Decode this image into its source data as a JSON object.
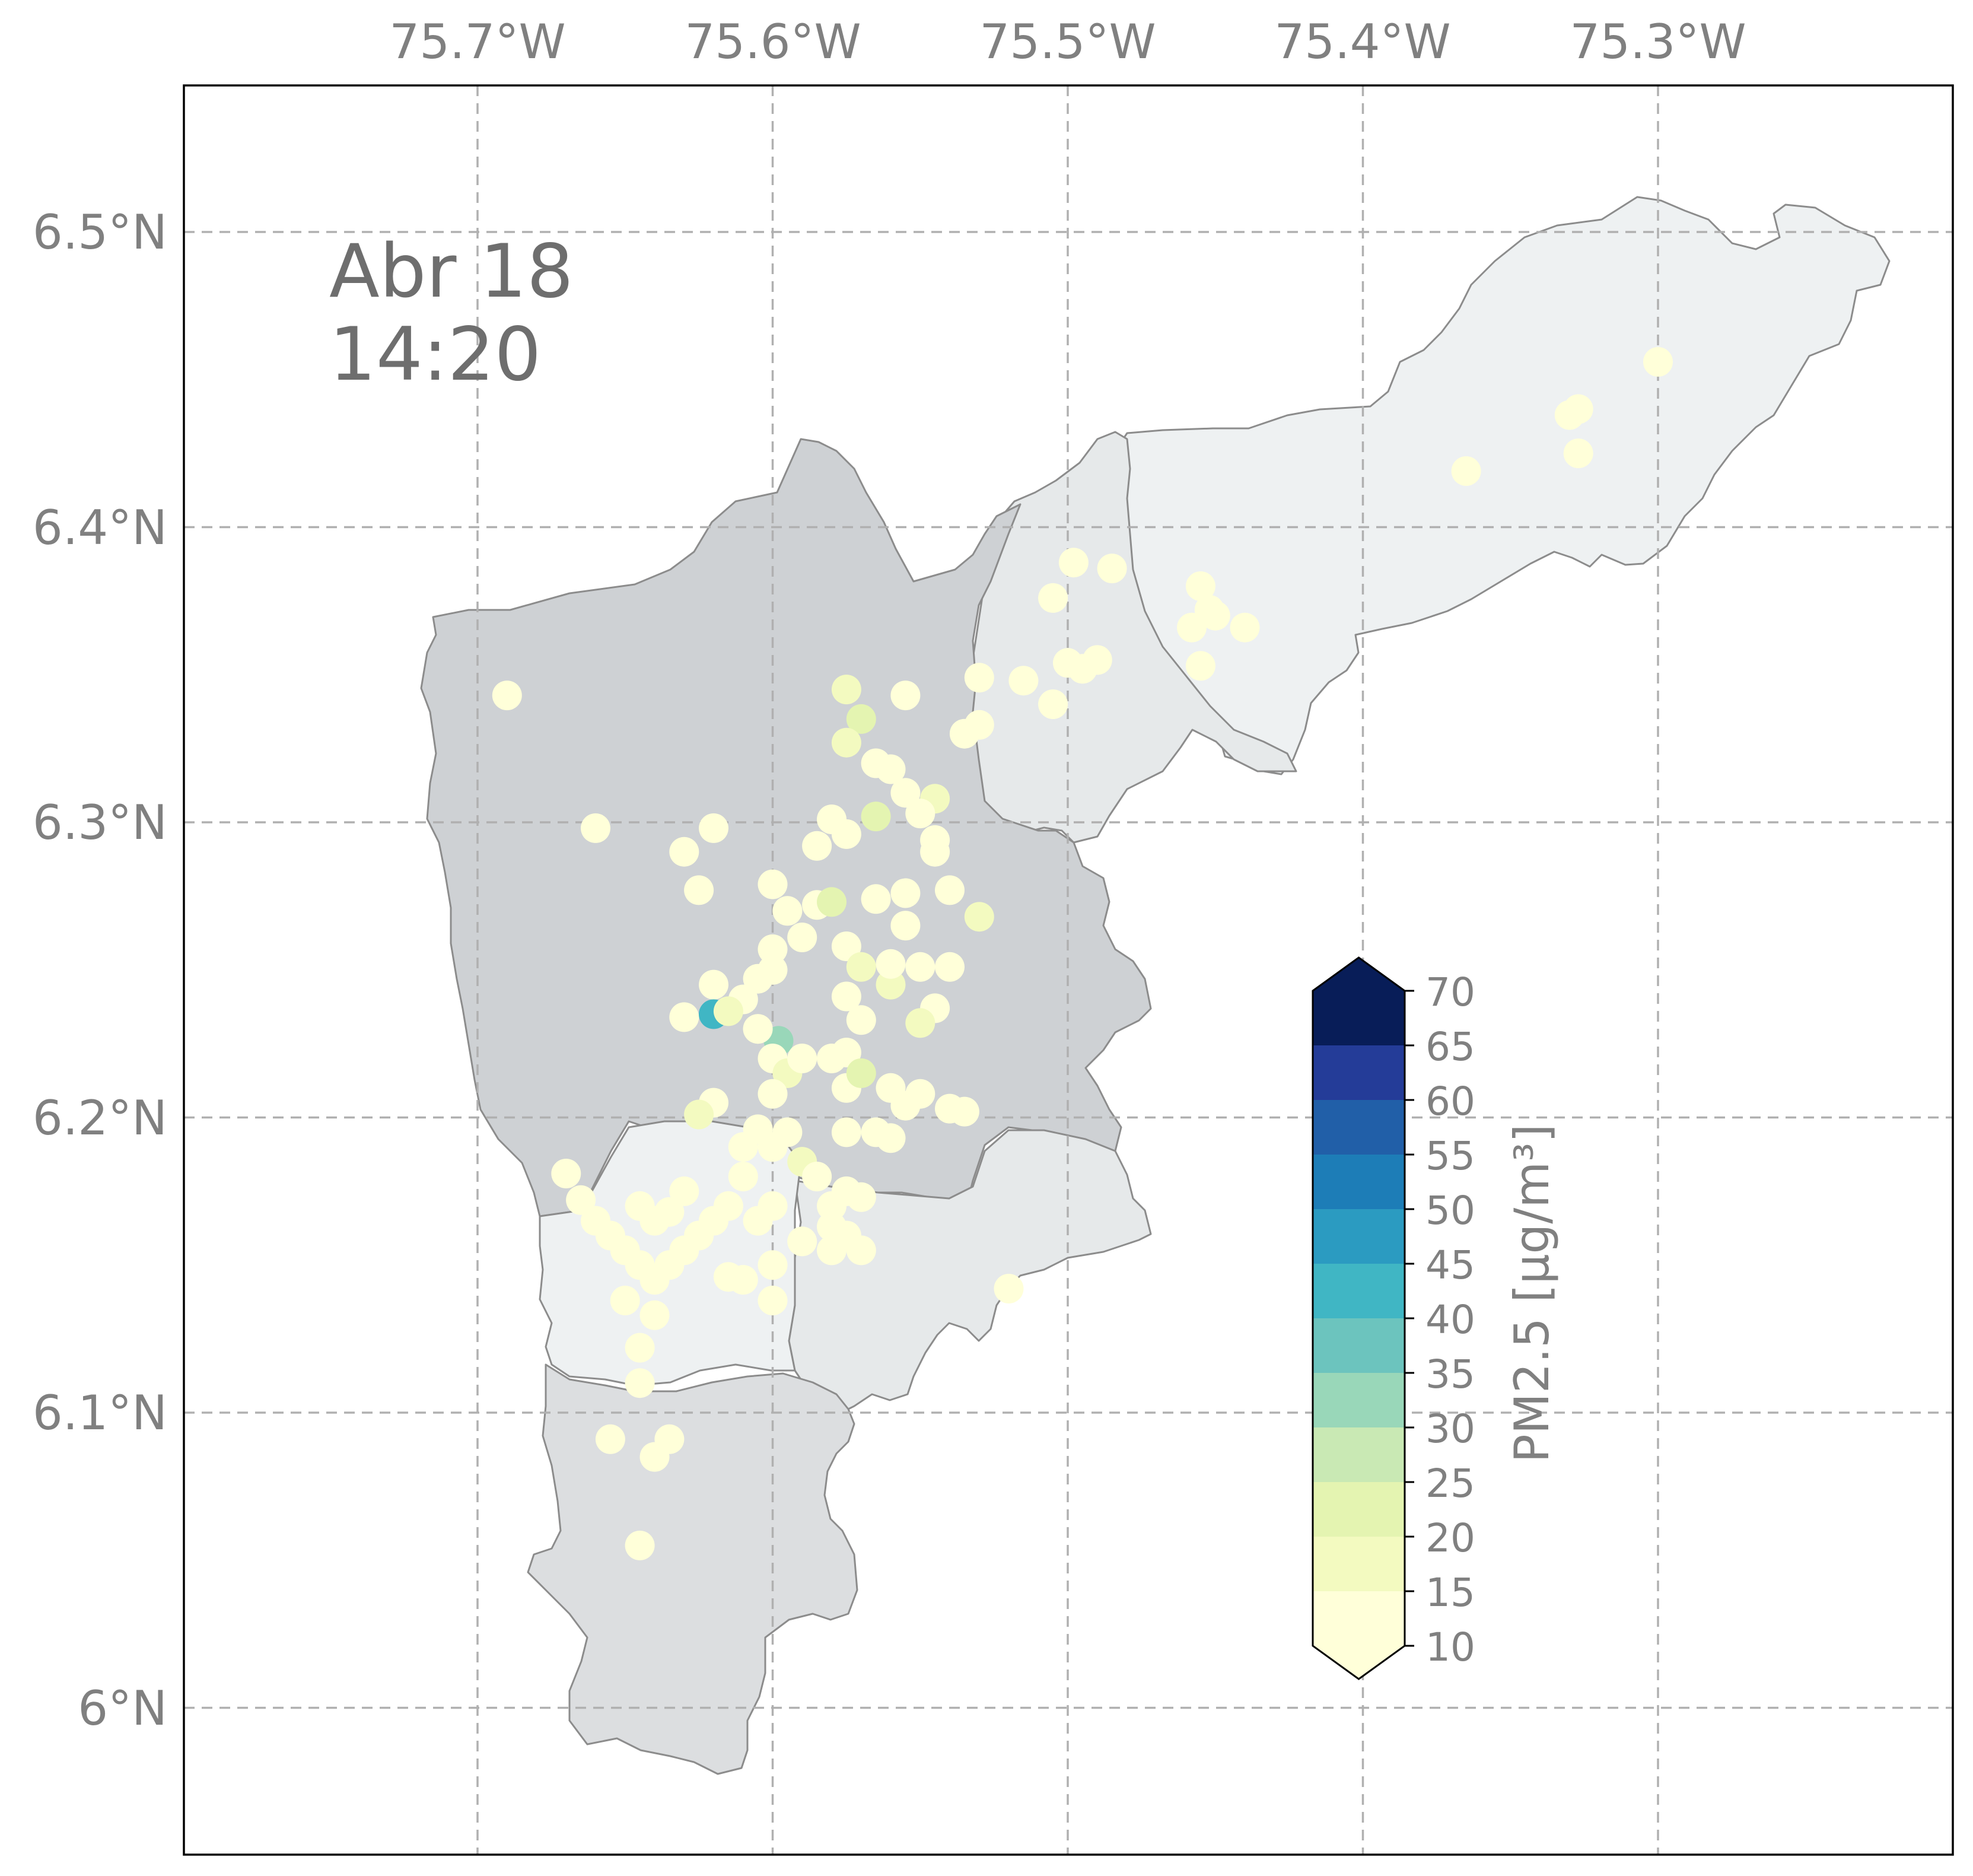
{
  "map": {
    "timestamp": {
      "date": "Abr 18",
      "time": "14:20"
    },
    "lon_ticks": [
      "75.7°W",
      "75.6°W",
      "75.5°W",
      "75.4°W",
      "75.3°W"
    ],
    "lat_ticks": [
      "6.5°N",
      "6.4°N",
      "6.3°N",
      "6.2°N",
      "6.1°N",
      "6°N"
    ],
    "colorbar": {
      "label": "PM2.5 [μg/m³]",
      "ticks": [
        "10",
        "15",
        "20",
        "25",
        "30",
        "35",
        "40",
        "45",
        "50",
        "55",
        "60",
        "65",
        "70"
      ],
      "levels": [
        10,
        15,
        20,
        25,
        30,
        35,
        40,
        45,
        50,
        55,
        60,
        65,
        70
      ],
      "colors": [
        "#ffffd9",
        "#f3fac0",
        "#e4f4b1",
        "#c9e9b4",
        "#99d7b9",
        "#6cc4be",
        "#40b6c4",
        "#2b9bc1",
        "#1d7db7",
        "#215fa8",
        "#243c98",
        "#081d58"
      ],
      "extend": "both"
    },
    "region_fills": {
      "valle_central": "#ced1d4",
      "sur": "#dcdee0",
      "norte": "#e6e9ea",
      "oriente": "#eef1f2"
    },
    "stations": [
      [
        -75.69,
        6.343,
        12
      ],
      [
        -75.66,
        6.298,
        12
      ],
      [
        -75.63,
        6.29,
        12
      ],
      [
        -75.62,
        6.298,
        12
      ],
      [
        -75.625,
        6.277,
        12
      ],
      [
        -75.6,
        6.279,
        12
      ],
      [
        -75.595,
        6.27,
        12
      ],
      [
        -75.585,
        6.272,
        13
      ],
      [
        -75.58,
        6.273,
        22
      ],
      [
        -75.59,
        6.261,
        12
      ],
      [
        -75.575,
        6.258,
        13
      ],
      [
        -75.57,
        6.251,
        18
      ],
      [
        -75.56,
        6.245,
        16
      ],
      [
        -75.56,
        6.252,
        14
      ],
      [
        -75.55,
        6.251,
        12
      ],
      [
        -75.54,
        6.251,
        12
      ],
      [
        -75.565,
        6.274,
        12
      ],
      [
        -75.555,
        6.265,
        14
      ],
      [
        -75.555,
        6.276,
        12
      ],
      [
        -75.54,
        6.277,
        12
      ],
      [
        -75.53,
        6.268,
        16
      ],
      [
        -75.545,
        6.237,
        12
      ],
      [
        -75.55,
        6.232,
        18
      ],
      [
        -75.575,
        6.241,
        12
      ],
      [
        -75.57,
        6.233,
        12
      ],
      [
        -75.62,
        6.245,
        12
      ],
      [
        -75.61,
        6.24,
        12
      ],
      [
        -75.605,
        6.247,
        12
      ],
      [
        -75.6,
        6.257,
        14
      ],
      [
        -75.6,
        6.25,
        12
      ],
      [
        -75.63,
        6.234,
        12
      ],
      [
        -75.62,
        6.235,
        44
      ],
      [
        -75.615,
        6.236,
        18
      ],
      [
        -75.605,
        6.23,
        16
      ],
      [
        -75.598,
        6.226,
        34
      ],
      [
        -75.6,
        6.22,
        12
      ],
      [
        -75.595,
        6.215,
        18
      ],
      [
        -75.59,
        6.22,
        12
      ],
      [
        -75.58,
        6.22,
        12
      ],
      [
        -75.575,
        6.222,
        12
      ],
      [
        -75.575,
        6.21,
        13
      ],
      [
        -75.57,
        6.215,
        22
      ],
      [
        -75.56,
        6.21,
        12
      ],
      [
        -75.555,
        6.204,
        12
      ],
      [
        -75.55,
        6.208,
        12
      ],
      [
        -75.54,
        6.203,
        12
      ],
      [
        -75.535,
        6.202,
        12
      ],
      [
        -75.6,
        6.208,
        12
      ],
      [
        -75.605,
        6.23,
        12
      ],
      [
        -75.62,
        6.205,
        12
      ],
      [
        -75.625,
        6.201,
        18
      ],
      [
        -75.61,
        6.19,
        12
      ],
      [
        -75.605,
        6.196,
        12
      ],
      [
        -75.6,
        6.19,
        12
      ],
      [
        -75.595,
        6.195,
        12
      ],
      [
        -75.59,
        6.185,
        18
      ],
      [
        -75.585,
        6.18,
        12
      ],
      [
        -75.58,
        6.17,
        12
      ],
      [
        -75.575,
        6.175,
        12
      ],
      [
        -75.57,
        6.173,
        12
      ],
      [
        -75.565,
        6.195,
        12
      ],
      [
        -75.56,
        6.193,
        12
      ],
      [
        -75.575,
        6.195,
        12
      ],
      [
        -75.58,
        6.163,
        12
      ],
      [
        -75.575,
        6.16,
        12
      ],
      [
        -75.57,
        6.155,
        12
      ],
      [
        -75.58,
        6.155,
        12
      ],
      [
        -75.59,
        6.158,
        12
      ],
      [
        -75.6,
        6.17,
        12
      ],
      [
        -75.605,
        6.165,
        12
      ],
      [
        -75.61,
        6.18,
        12
      ],
      [
        -75.615,
        6.17,
        12
      ],
      [
        -75.62,
        6.165,
        12
      ],
      [
        -75.625,
        6.16,
        12
      ],
      [
        -75.63,
        6.155,
        12
      ],
      [
        -75.635,
        6.15,
        12
      ],
      [
        -75.64,
        6.145,
        12
      ],
      [
        -75.645,
        6.15,
        12
      ],
      [
        -75.65,
        6.155,
        12
      ],
      [
        -75.655,
        6.16,
        12
      ],
      [
        -75.66,
        6.165,
        12
      ],
      [
        -75.665,
        6.172,
        12
      ],
      [
        -75.67,
        6.181,
        12
      ],
      [
        -75.645,
        6.17,
        12
      ],
      [
        -75.64,
        6.165,
        12
      ],
      [
        -75.635,
        6.168,
        12
      ],
      [
        -75.63,
        6.175,
        12
      ],
      [
        -75.65,
        6.138,
        12
      ],
      [
        -75.64,
        6.133,
        12
      ],
      [
        -75.645,
        6.122,
        12
      ],
      [
        -75.645,
        6.11,
        12
      ],
      [
        -75.655,
        6.091,
        12
      ],
      [
        -75.635,
        6.091,
        12
      ],
      [
        -75.64,
        6.085,
        12
      ],
      [
        -75.645,
        6.055,
        12
      ],
      [
        -75.61,
        6.145,
        12
      ],
      [
        -75.6,
        6.15,
        12
      ],
      [
        -75.6,
        6.138,
        12
      ],
      [
        -75.615,
        6.146,
        12
      ],
      [
        -75.575,
        6.345,
        18
      ],
      [
        -75.57,
        6.335,
        24
      ],
      [
        -75.575,
        6.327,
        16
      ],
      [
        -75.565,
        6.32,
        12
      ],
      [
        -75.56,
        6.318,
        12
      ],
      [
        -75.555,
        6.343,
        12
      ],
      [
        -75.555,
        6.31,
        12
      ],
      [
        -75.545,
        6.308,
        16
      ],
      [
        -75.55,
        6.303,
        12
      ],
      [
        -75.545,
        6.294,
        14
      ],
      [
        -75.545,
        6.29,
        12
      ],
      [
        -75.565,
        6.302,
        22
      ],
      [
        -75.575,
        6.296,
        12
      ],
      [
        -75.58,
        6.301,
        12
      ],
      [
        -75.585,
        6.292,
        12
      ],
      [
        -75.53,
        6.349,
        12
      ],
      [
        -75.53,
        6.333,
        12
      ],
      [
        -75.535,
        6.33,
        12
      ],
      [
        -75.515,
        6.348,
        12
      ],
      [
        -75.505,
        6.34,
        14
      ],
      [
        -75.5,
        6.354,
        12
      ],
      [
        -75.495,
        6.352,
        12
      ],
      [
        -75.49,
        6.355,
        12
      ],
      [
        -75.498,
        6.388,
        12
      ],
      [
        -75.485,
        6.386,
        12
      ],
      [
        -75.505,
        6.376,
        12
      ],
      [
        -75.455,
        6.38,
        12
      ],
      [
        -75.452,
        6.372,
        12
      ],
      [
        -75.45,
        6.37,
        12
      ],
      [
        -75.458,
        6.366,
        12
      ],
      [
        -75.44,
        6.366,
        12
      ],
      [
        -75.455,
        6.353,
        12
      ],
      [
        -75.52,
        6.142,
        12
      ],
      [
        -75.365,
        6.419,
        12
      ],
      [
        -75.33,
        6.438,
        12
      ],
      [
        -75.327,
        6.44,
        12
      ],
      [
        -75.327,
        6.425,
        12
      ],
      [
        -75.3,
        6.456,
        12
      ]
    ]
  }
}
